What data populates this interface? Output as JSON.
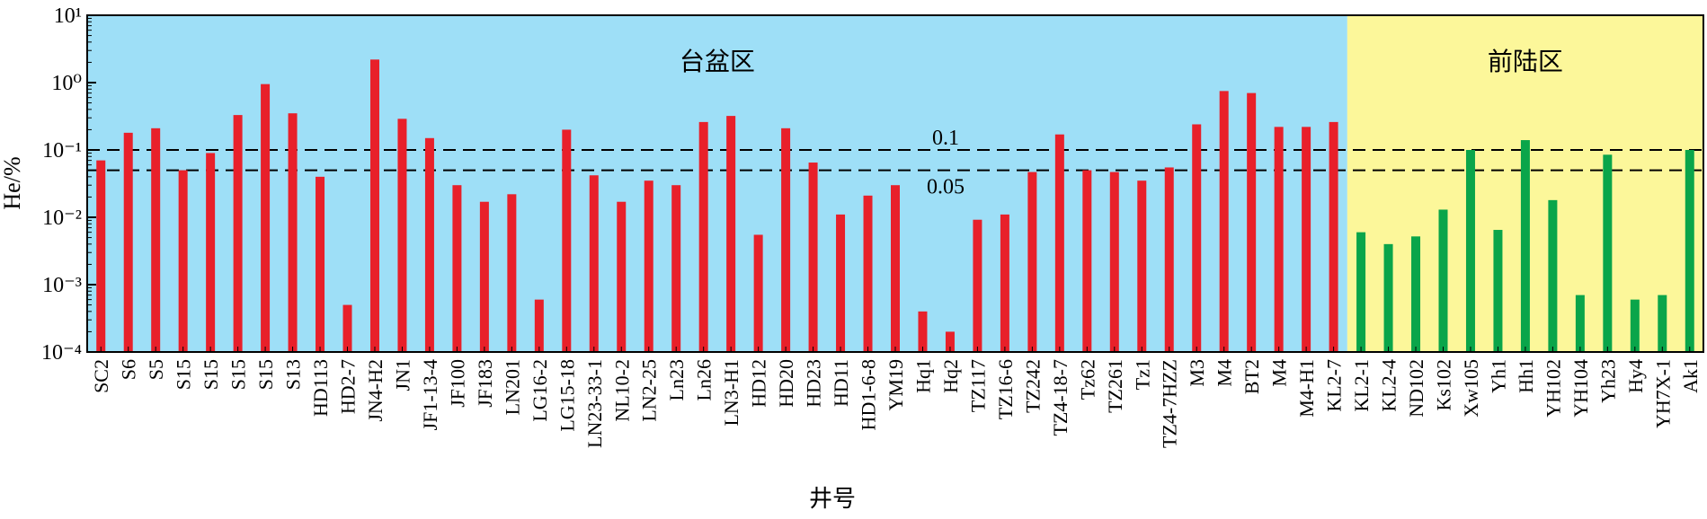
{
  "chart_data": {
    "type": "bar",
    "x_label": "井号",
    "y_label": "He/%",
    "log_scale": true,
    "categories": [
      "SC2",
      "S6",
      "S5",
      "S15",
      "S15",
      "S15",
      "S15",
      "S13",
      "HD113",
      "HD2-7",
      "JN4-H2",
      "JN1",
      "JF1-13-4",
      "JF100",
      "JF183",
      "LN201",
      "LG16-2",
      "LG15-18",
      "LN23-33-1",
      "NL10-2",
      "LN2-25",
      "Ln23",
      "Ln26",
      "LN3-H1",
      "HD12",
      "HD20",
      "HD23",
      "HD11",
      "HD1-6-8",
      "YM19",
      "Hq1",
      "Hq2",
      "TZ117",
      "TZ16-6",
      "TZ242",
      "TZ4-18-7",
      "Tz62",
      "TZ261",
      "Tz1",
      "TZ4-7HZZ",
      "M3",
      "M4",
      "BT2",
      "M4",
      "M4-H1",
      "KL2-7",
      "KL2-1",
      "KL2-4",
      "ND102",
      "Ks102",
      "Xw105",
      "Yh1",
      "Hh1",
      "YH102",
      "YH104",
      "Yh23",
      "Hy4",
      "YH7X-1",
      "Ak1"
    ],
    "series": [
      {
        "name": "台盆区",
        "color": "#e8202a",
        "background": "#9edff7",
        "values": [
          0.07,
          0.18,
          0.21,
          0.05,
          0.09,
          0.33,
          0.95,
          0.35,
          0.04,
          0.0005,
          2.2,
          0.29,
          0.15,
          0.03,
          0.017,
          0.022,
          0.0006,
          0.2,
          0.042,
          0.017,
          0.035,
          0.03,
          0.26,
          0.32,
          0.0055,
          0.21,
          0.065,
          0.011,
          0.021,
          0.03,
          0.0004,
          0.0002,
          0.0092,
          0.011,
          0.047,
          0.17,
          0.05,
          0.047,
          0.035,
          0.055,
          0.24,
          0.75,
          0.7,
          0.22,
          0.22,
          0.26,
          null,
          null,
          null,
          null,
          null,
          null,
          null,
          null,
          null,
          null,
          null,
          null,
          null
        ]
      },
      {
        "name": "前陆区",
        "color": "#0aa54a",
        "background": "#fcf79a",
        "values": [
          null,
          null,
          null,
          null,
          null,
          null,
          null,
          null,
          null,
          null,
          null,
          null,
          null,
          null,
          null,
          null,
          null,
          null,
          null,
          null,
          null,
          null,
          null,
          null,
          null,
          null,
          null,
          null,
          null,
          null,
          null,
          null,
          null,
          null,
          null,
          null,
          null,
          null,
          null,
          null,
          null,
          null,
          null,
          null,
          null,
          null,
          0.006,
          0.004,
          0.0052,
          0.013,
          0.1,
          0.0065,
          0.14,
          0.018,
          0.0007,
          0.085,
          0.0006,
          0.0007,
          0.1
        ]
      }
    ],
    "hlines": [
      0.1,
      0.05
    ],
    "ylim": [
      0.0001,
      10
    ],
    "yticks": [
      {
        "value": 0.0001,
        "label": "10⁻⁴"
      },
      {
        "value": 0.001,
        "label": "10⁻³"
      },
      {
        "value": 0.01,
        "label": "10⁻²"
      },
      {
        "value": 0.1,
        "label": "10⁻¹"
      },
      {
        "value": 1,
        "label": "10⁰"
      },
      {
        "value": 10,
        "label": "10¹"
      }
    ]
  }
}
